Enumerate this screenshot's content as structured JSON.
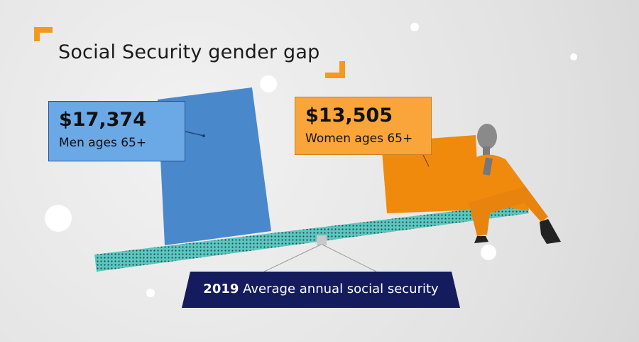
{
  "title": "Social Security gender gap",
  "men": {
    "amount": "$17,374",
    "label": "Men ages 65+"
  },
  "women": {
    "amount": "$13,505",
    "label": "Women ages 65+"
  },
  "banner": {
    "year": "2019",
    "text": "Average annual social security"
  },
  "colors": {
    "men": "#4a88cc",
    "women": "#f08a0c",
    "beam": "#5cc6c0",
    "banner": "#141c5e",
    "accent": "#f39a1d"
  },
  "chart_data": {
    "type": "bar",
    "title": "Social Security gender gap",
    "subtitle": "2019 Average annual social security",
    "categories": [
      "Men ages 65+",
      "Women ages 65+"
    ],
    "values": [
      17374,
      13505
    ],
    "unit": "USD"
  }
}
